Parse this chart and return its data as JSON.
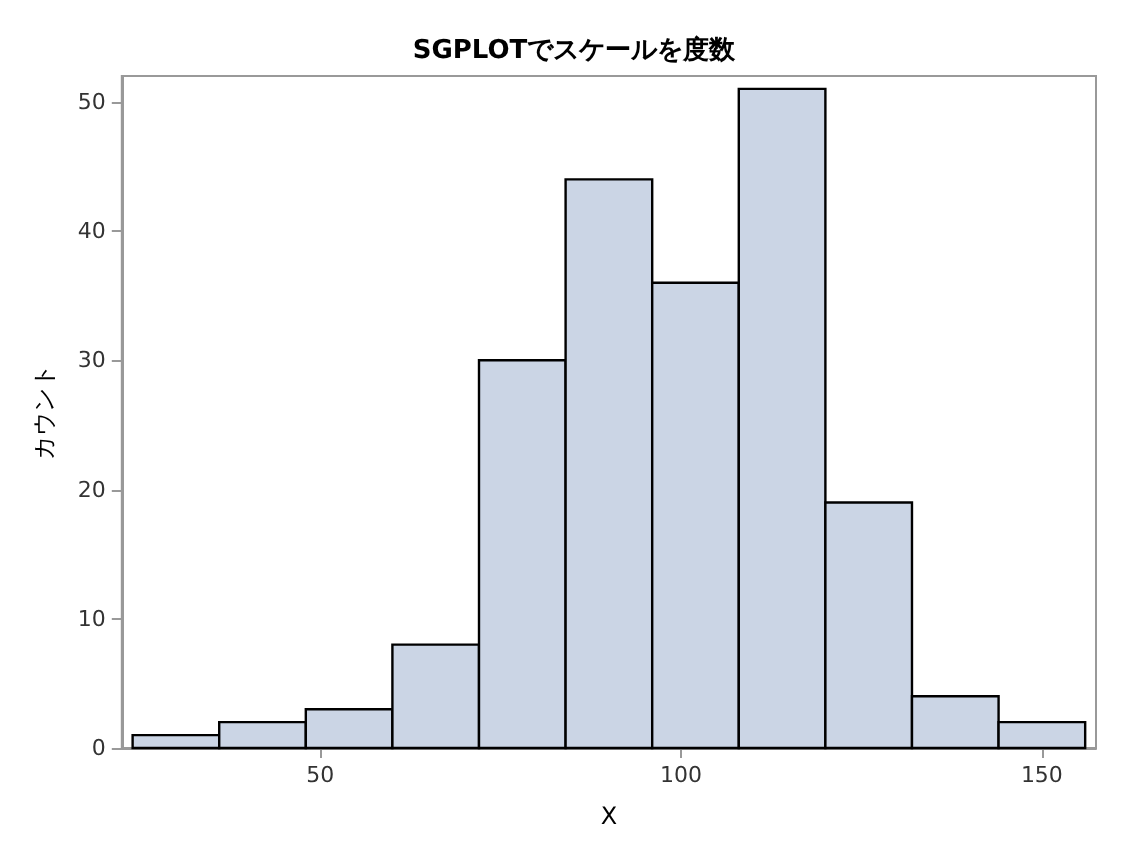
{
  "chart_data": {
    "type": "histogram",
    "title": "SGPLOTでスケールを度数",
    "xlabel": "X",
    "ylabel": "カウント",
    "bins": [
      24,
      36,
      48,
      60,
      72,
      84,
      96,
      108,
      120,
      132,
      144,
      156
    ],
    "values": [
      1,
      2,
      3,
      8,
      30,
      44,
      36,
      51,
      19,
      4,
      2
    ],
    "color": "#cbd5e5",
    "xlim": [
      22.5,
      157.5
    ],
    "xticks": [
      50,
      100,
      150
    ],
    "ylim": [
      0,
      52
    ],
    "yticks": [
      0,
      10,
      20,
      30,
      40,
      50
    ],
    "grid": false
  }
}
